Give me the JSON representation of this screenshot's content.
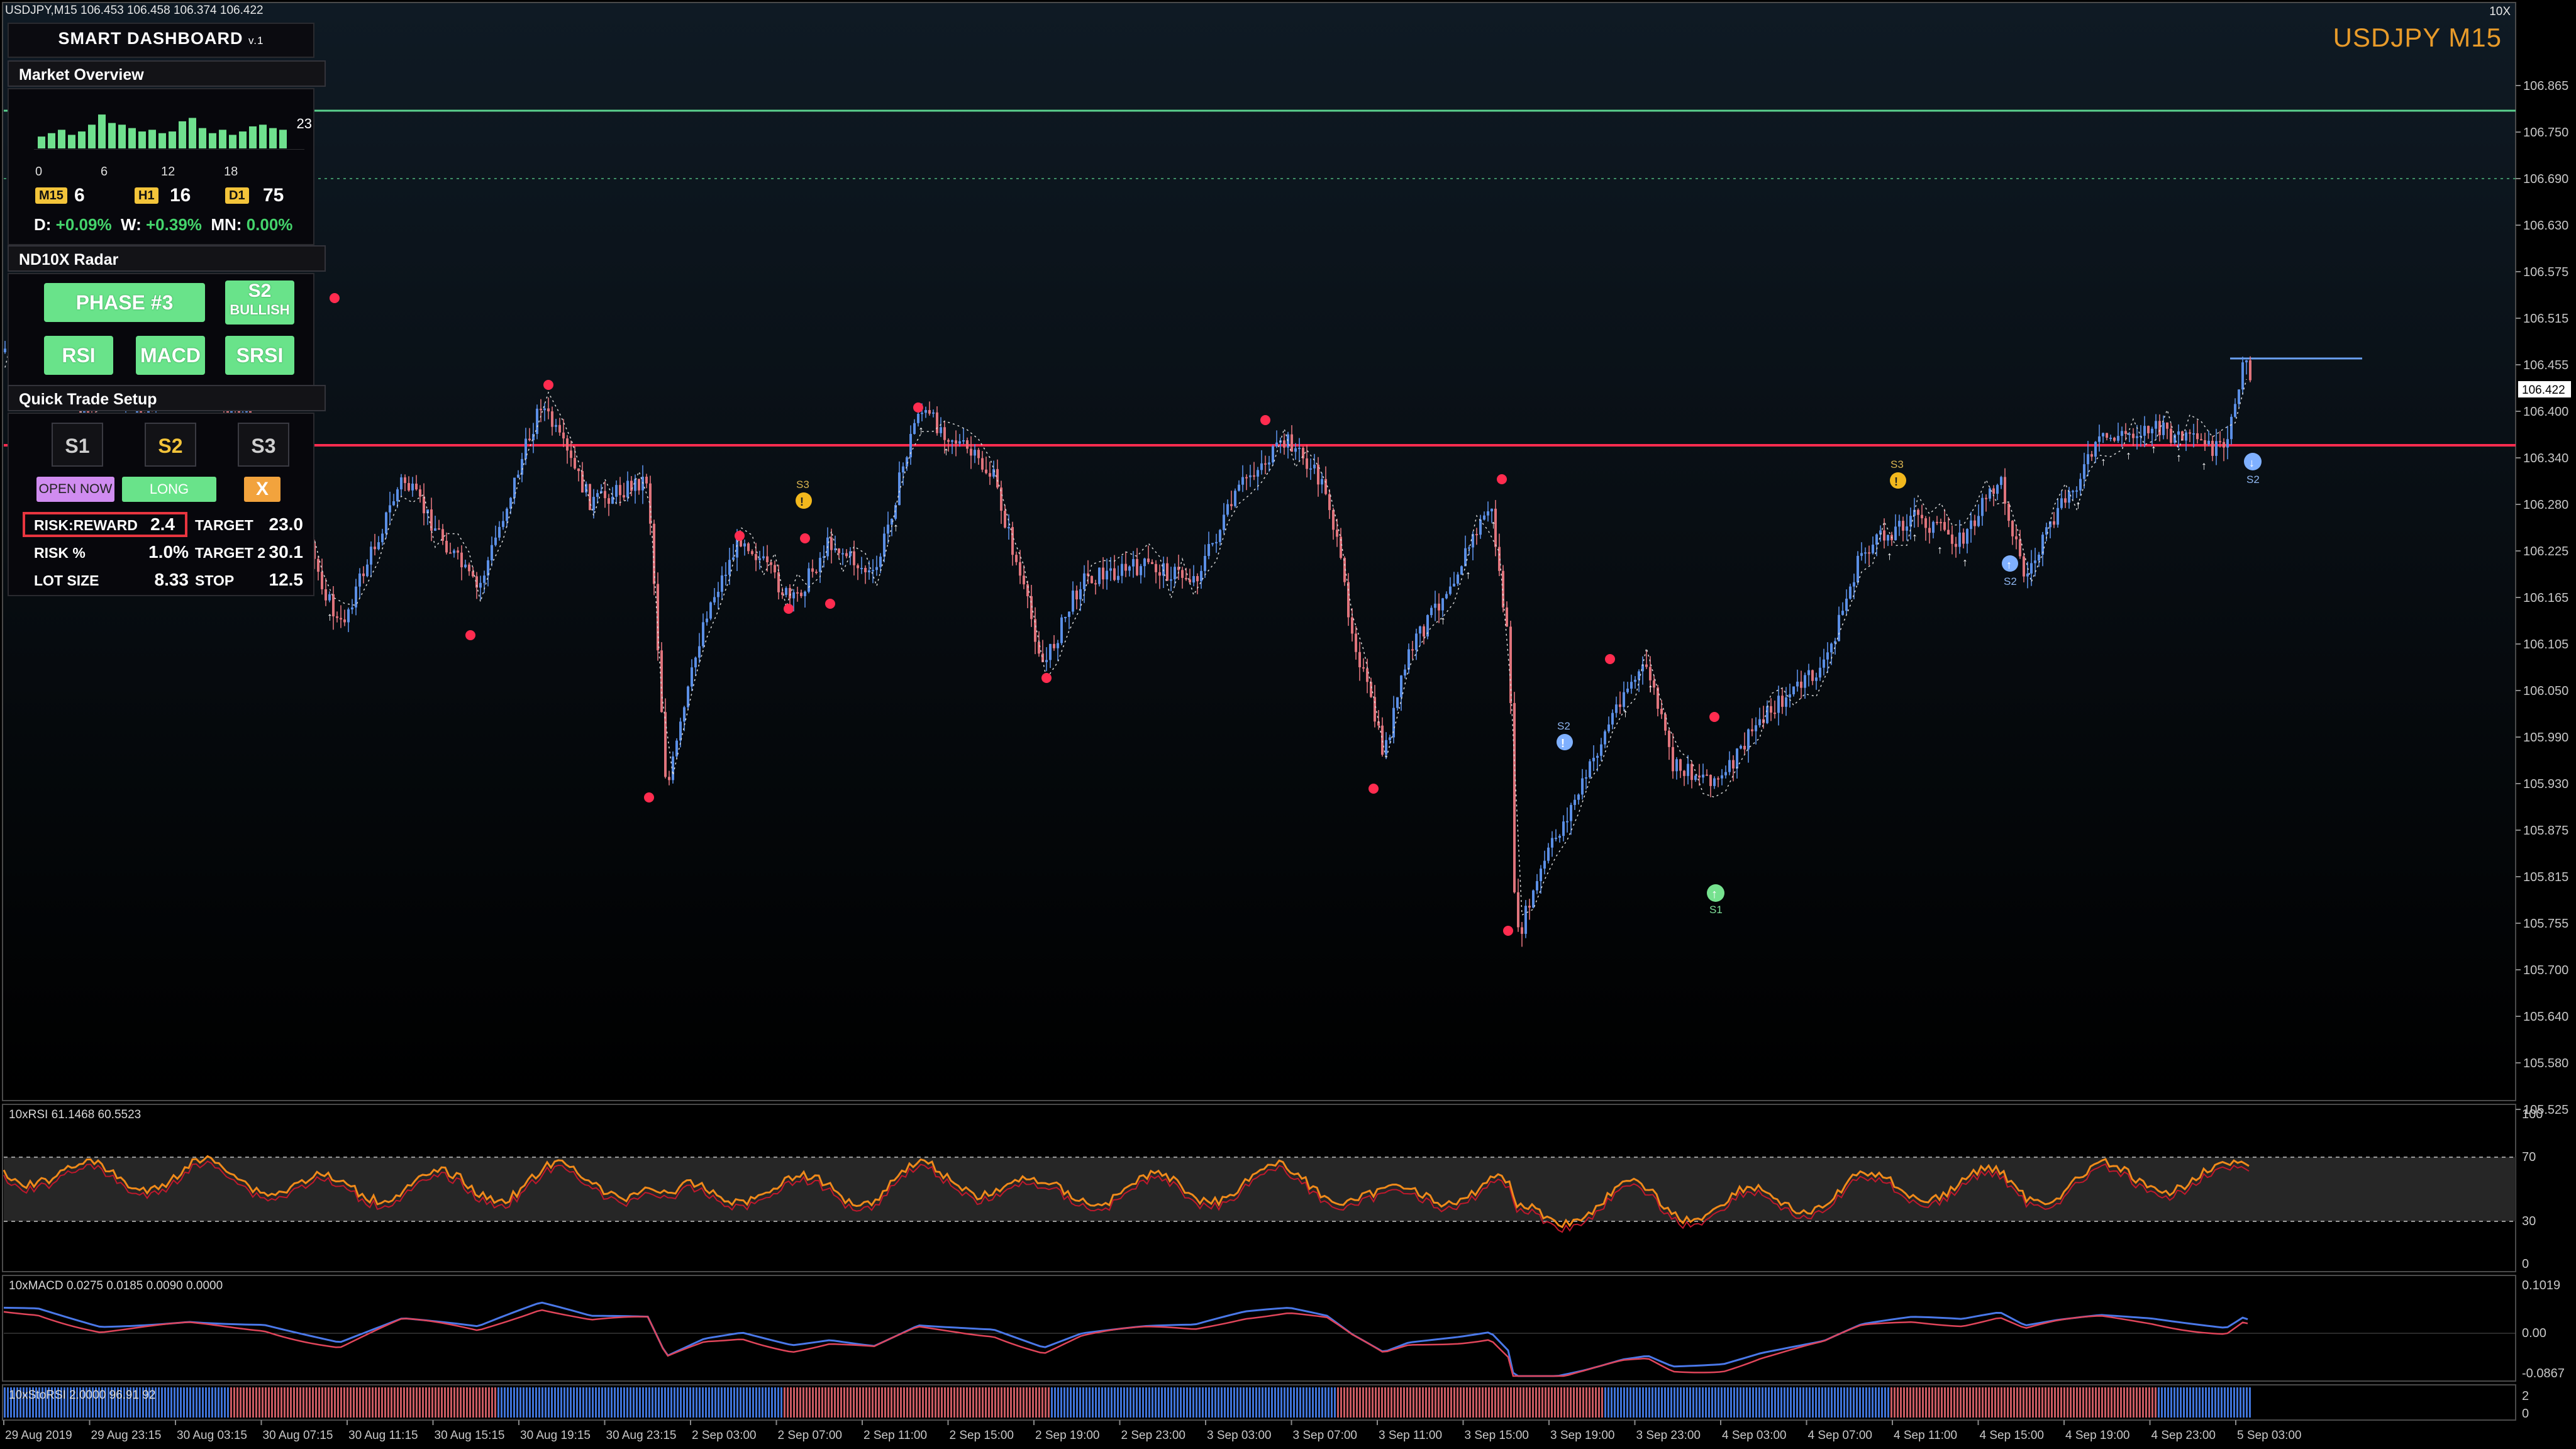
{
  "window": {
    "symbol_info": "USDJPY,M15  106.453 106.458 106.374 106.422",
    "top_right_label": "10X",
    "chart_title": "USDJPY M15"
  },
  "price_axis": {
    "ticks": [
      "106.865",
      "106.750",
      "106.690",
      "106.630",
      "106.575",
      "106.515",
      "106.455",
      "106.400",
      "106.340",
      "106.280",
      "106.225",
      "106.165",
      "106.105",
      "106.050",
      "105.990",
      "105.930",
      "105.875",
      "105.815",
      "105.755",
      "105.700",
      "105.640",
      "105.580",
      "105.525"
    ],
    "current_price": "106.422"
  },
  "time_axis": {
    "ticks": [
      "29 Aug 2019",
      "29 Aug 23:15",
      "30 Aug 03:15",
      "30 Aug 07:15",
      "30 Aug 11:15",
      "30 Aug 15:15",
      "30 Aug 19:15",
      "30 Aug 23:15",
      "2 Sep 03:00",
      "2 Sep 07:00",
      "2 Sep 11:00",
      "2 Sep 15:00",
      "2 Sep 19:00",
      "2 Sep 23:00",
      "3 Sep 03:00",
      "3 Sep 07:00",
      "3 Sep 11:00",
      "3 Sep 15:00",
      "3 Sep 19:00",
      "3 Sep 23:00",
      "4 Sep 03:00",
      "4 Sep 07:00",
      "4 Sep 11:00",
      "4 Sep 15:00",
      "4 Sep 19:00",
      "4 Sep 23:00",
      "5 Sep 03:00"
    ]
  },
  "signals": {
    "s3_left": "S3",
    "s2_mid": "S2",
    "s1": "S1",
    "s3_right": "S3",
    "s2_right": "S2",
    "s2_far": "S2"
  },
  "rsi_pane": {
    "label": "10xRSI 61.1468 60.5523",
    "ticks": [
      "100",
      "70",
      "30",
      "0"
    ]
  },
  "macd_pane": {
    "label": "10xMACD 0.0275 0.0185 0.0090 0.0000",
    "ticks": [
      "0.1019",
      "0.00",
      "-0.0867"
    ]
  },
  "srsi_pane": {
    "label": "10xStoRSI 2.0000 96.91 92",
    "ticks": [
      "2",
      "0"
    ]
  },
  "dashboard": {
    "title": "SMART DASHBOARD",
    "version": "v.1",
    "market_overview": {
      "title": "Market Overview",
      "hist_max": "23",
      "hist_axis": [
        "0",
        "6",
        "12",
        "18"
      ],
      "histogram": [
        7,
        9,
        11,
        8,
        10,
        14,
        20,
        15,
        14,
        12,
        10,
        11,
        9,
        10,
        16,
        18,
        12,
        9,
        11,
        8,
        10,
        13,
        14,
        12,
        11
      ],
      "tf": [
        {
          "name": "M15",
          "value": "6"
        },
        {
          "name": "H1",
          "value": "16"
        },
        {
          "name": "D1",
          "value": "75"
        }
      ],
      "perf": [
        {
          "label": "D:",
          "value": "+0.09%"
        },
        {
          "label": "W:",
          "value": "+0.39%"
        },
        {
          "label": "MN:",
          "value": "0.00%"
        }
      ]
    },
    "radar": {
      "title": "ND10X Radar",
      "phase": "PHASE #3",
      "s2_line1": "S2",
      "s2_line2": "BULLISH",
      "rsi": "RSI",
      "macd": "MACD",
      "srsi": "SRSI"
    },
    "quick_trade": {
      "title": "Quick Trade Setup",
      "s1": "S1",
      "s2": "S2",
      "s3": "S3",
      "open_now": "OPEN NOW",
      "direction": "LONG",
      "close": "X",
      "rows": [
        {
          "label": "RISK:REWARD",
          "value": "2.4",
          "label2": "TARGET",
          "value2": "23.0"
        },
        {
          "label": "RISK %",
          "value": "1.0%",
          "label2": "TARGET 2",
          "value2": "30.1"
        },
        {
          "label": "LOT SIZE",
          "value": "8.33",
          "label2": "STOP",
          "value2": "12.5"
        }
      ]
    }
  },
  "colors": {
    "bull": "#5b8fe6",
    "bear": "#e0747c",
    "red_line": "#ff2c4f",
    "green_line": "#5cd28e",
    "rsi": "#f08a1a",
    "accent": "#e89b2a"
  }
}
